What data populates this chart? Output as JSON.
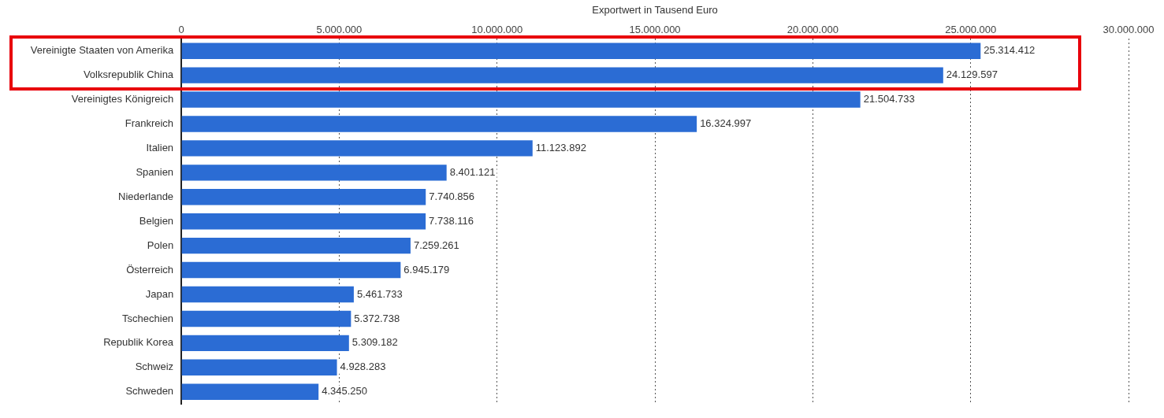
{
  "chart_data": {
    "type": "bar",
    "orientation": "horizontal",
    "xlabel": "Exportwert in Tausend Euro",
    "categories": [
      "Vereinigte Staaten von Amerika",
      "Volksrepublik China",
      "Vereinigtes Königreich",
      "Frankreich",
      "Italien",
      "Spanien",
      "Niederlande",
      "Belgien",
      "Polen",
      "Österreich",
      "Japan",
      "Tschechien",
      "Republik Korea",
      "Schweiz",
      "Schweden"
    ],
    "values": [
      25314412,
      24129597,
      21504733,
      16324997,
      11123892,
      8401121,
      7740856,
      7738116,
      7259261,
      6945179,
      5461733,
      5372738,
      5309182,
      4928283,
      4345250
    ],
    "value_labels": [
      "25.314.412",
      "24.129.597",
      "21.504.733",
      "16.324.997",
      "11.123.892",
      "8.401.121",
      "7.740.856",
      "7.738.116",
      "7.259.261",
      "6.945.179",
      "5.461.733",
      "5.372.738",
      "5.309.182",
      "4.928.283",
      "4.345.250"
    ],
    "color": "#2b6cd4",
    "xlim": [
      0,
      30000000
    ],
    "xticks": [
      0,
      {
        "value": 5000000,
        "label": "5.000.000"
      },
      {
        "value": 10000000,
        "label": "10.000.000"
      },
      {
        "value": 15000000,
        "label": "15.000.000"
      },
      {
        "value": 20000000,
        "label": "20.000.000"
      },
      {
        "value": 25000000,
        "label": "25.000.000"
      },
      {
        "value": 30000000,
        "label": "30.000.000"
      }
    ],
    "grid": "x",
    "legend": false
  }
}
